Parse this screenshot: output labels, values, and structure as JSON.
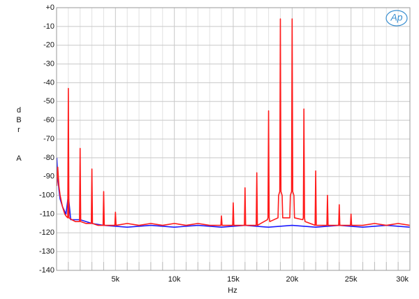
{
  "chart_data": {
    "type": "line",
    "xlabel": "Hz",
    "ylabel": "dBr",
    "ylabel2": "A",
    "logo": "Ap",
    "xlim": [
      0,
      30000
    ],
    "xticks": [
      {
        "value": 5000,
        "label": "5k"
      },
      {
        "value": 10000,
        "label": "10k"
      },
      {
        "value": 15000,
        "label": "15k"
      },
      {
        "value": 20000,
        "label": "20k"
      },
      {
        "value": 25000,
        "label": "25k"
      },
      {
        "value": 30000,
        "label": "30k"
      }
    ],
    "xminorticks": [
      1000,
      2000,
      3000,
      4000,
      6000,
      7000,
      8000,
      9000,
      11000,
      12000,
      13000,
      14000,
      16000,
      17000,
      18000,
      19000,
      21000,
      22000,
      23000,
      24000,
      26000,
      27000,
      28000,
      29000
    ],
    "ylim": [
      -140,
      0
    ],
    "yticks": [
      {
        "value": 0,
        "label": "+0"
      },
      -10,
      -20,
      -30,
      -40,
      -50,
      -60,
      -70,
      -80,
      -90,
      -100,
      -110,
      -120,
      -130,
      -140
    ],
    "grid": true,
    "series": [
      {
        "color": "#1a1aff",
        "x": [
          20,
          100,
          200,
          300,
          500,
          800,
          1000,
          1200,
          2000,
          3000,
          4000,
          6000,
          8000,
          10000,
          12000,
          14000,
          16000,
          18000,
          20000,
          22000,
          24000,
          26000,
          28000,
          30000
        ],
        "values": [
          -80,
          -90,
          -97,
          -102,
          -106,
          -110,
          -100,
          -113,
          -113,
          -115,
          -116,
          -117,
          -116,
          -117,
          -116,
          -117,
          -116,
          -117,
          -116,
          -117,
          -116,
          -117,
          -116,
          -117
        ]
      },
      {
        "color": "#ff1a1a",
        "x": [
          20,
          100,
          200,
          300,
          400,
          500,
          600,
          700,
          800,
          950,
          1000,
          1050,
          1300,
          1600,
          1950,
          2000,
          2050,
          2500,
          2950,
          3000,
          3050,
          3500,
          3950,
          4000,
          4050,
          4500,
          4950,
          5000,
          5050,
          6000,
          7000,
          8000,
          9000,
          10000,
          11000,
          12000,
          13000,
          13950,
          14000,
          14050,
          14950,
          15000,
          15050,
          15950,
          16000,
          16050,
          16950,
          17000,
          17050,
          17900,
          17950,
          18000,
          18050,
          18100,
          18800,
          18850,
          18950,
          19000,
          19050,
          19150,
          19200,
          19800,
          19850,
          19950,
          20000,
          20050,
          20150,
          20200,
          20900,
          20950,
          21000,
          21050,
          21100,
          21950,
          22000,
          22050,
          22950,
          23000,
          23050,
          23950,
          24000,
          24050,
          24950,
          25000,
          25050,
          26000,
          27000,
          28000,
          29000,
          30000
        ],
        "values": [
          -95,
          -85,
          -95,
          -100,
          -103,
          -106,
          -108,
          -110,
          -111,
          -112,
          -43,
          -112,
          -113,
          -114,
          -114,
          -75,
          -114,
          -115,
          -115,
          -86,
          -115,
          -116,
          -116,
          -98,
          -116,
          -116,
          -116,
          -109,
          -116,
          -115,
          -116,
          -115,
          -116,
          -115,
          -116,
          -115,
          -116,
          -116,
          -111,
          -116,
          -116,
          -104,
          -116,
          -116,
          -96,
          -116,
          -116,
          -88,
          -116,
          -113,
          -112,
          -55,
          -112,
          -114,
          -112,
          -100,
          -98,
          -6,
          -98,
          -100,
          -112,
          -112,
          -100,
          -98,
          -6,
          -98,
          -100,
          -112,
          -113,
          -112,
          -54,
          -112,
          -114,
          -116,
          -87,
          -116,
          -116,
          -100,
          -116,
          -116,
          -105,
          -116,
          -116,
          -110,
          -116,
          -116,
          -115,
          -116,
          -115,
          -116
        ]
      }
    ]
  }
}
